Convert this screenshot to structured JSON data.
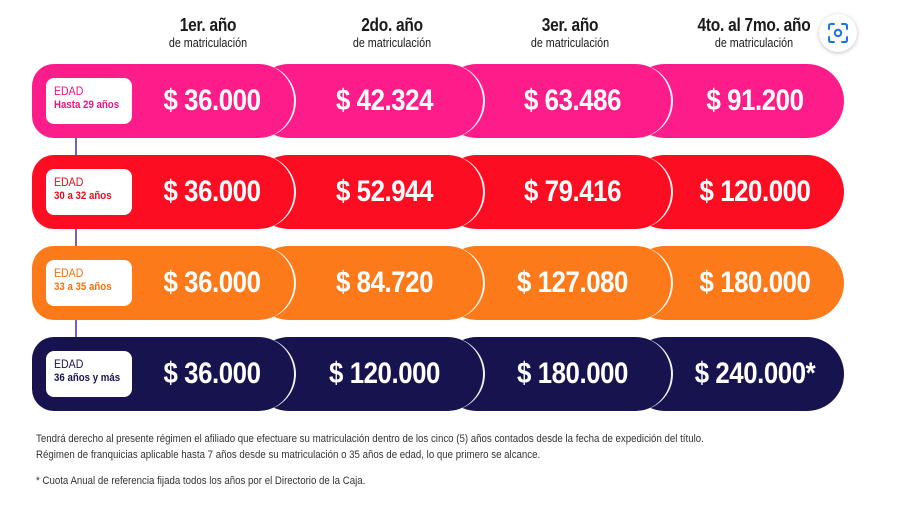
{
  "columns": [
    {
      "title": "1er. año",
      "subtitle": "de matriculación"
    },
    {
      "title": "2do. año",
      "subtitle": "de matriculación"
    },
    {
      "title": "3er. año",
      "subtitle": "de matriculación"
    },
    {
      "title": "4to. al 7mo. año",
      "subtitle": "de matriculación"
    }
  ],
  "rows": [
    {
      "label": "EDAD",
      "range": "Hasta 29 años",
      "color": "#fd1d8a",
      "text_color": "#e8157f",
      "prices": [
        "$ 36.000",
        "$ 42.324",
        "$ 63.486",
        "$ 91.200"
      ]
    },
    {
      "label": "EDAD",
      "range": "30 a 32 años",
      "color": "#fd0d21",
      "text_color": "#e10e1f",
      "prices": [
        "$ 36.000",
        "$ 52.944",
        "$ 79.416",
        "$ 120.000"
      ]
    },
    {
      "label": "EDAD",
      "range": "33 a 35 años",
      "color": "#fd7a1a",
      "text_color": "#f07014",
      "prices": [
        "$ 36.000",
        "$ 84.720",
        "$ 127.080",
        "$ 180.000"
      ]
    },
    {
      "label": "EDAD",
      "range": "36 años y más",
      "color": "#17134e",
      "text_color": "#17134e",
      "prices": [
        "$ 36.000",
        "$ 120.000",
        "$ 180.000",
        "$ 240.000*"
      ]
    }
  ],
  "notes": {
    "line1": "Tendrá derecho al presente régimen el afiliado que efectuare su matriculación dentro de los cinco (5) años contados desde la fecha de expedición del título.",
    "line2": "Régimen de franquicias aplicable hasta 7 años desde su matriculación o 35 años de edad, lo que primero se alcance.",
    "footnote": "* Cuota Anual de referencia fijada todos los años por el Directorio de la Caja."
  },
  "icons": {
    "scan": "lens-scan-icon"
  }
}
